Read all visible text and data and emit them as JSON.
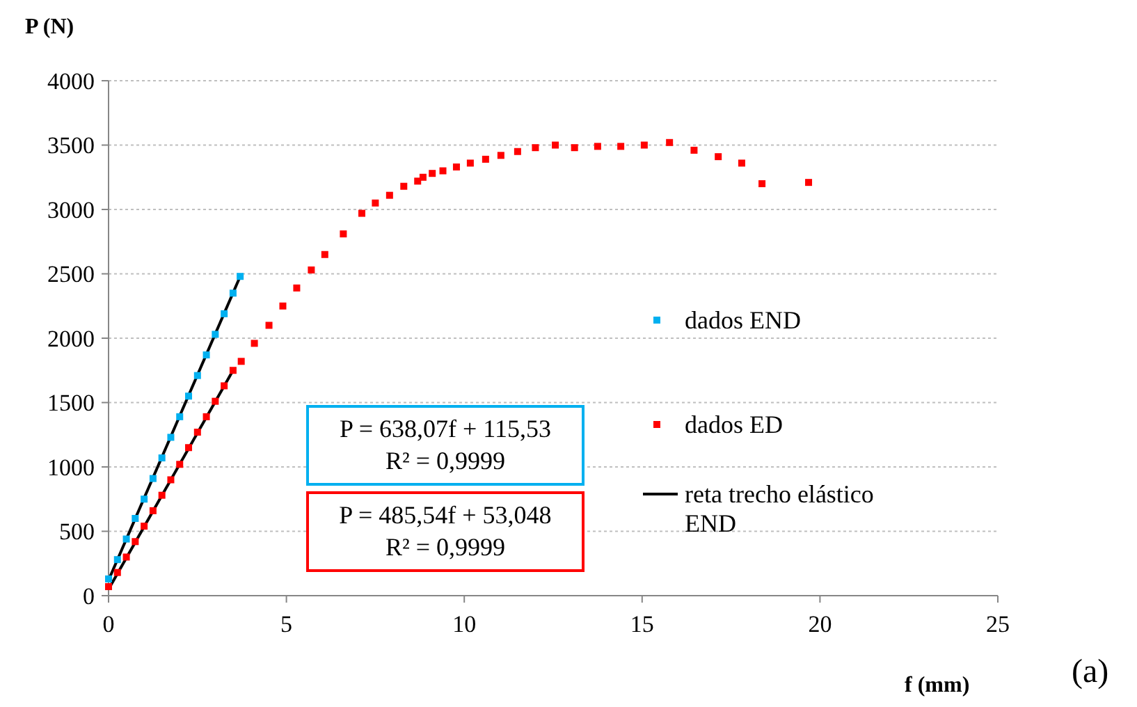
{
  "chart_data": {
    "type": "scatter",
    "xlabel": "f (mm)",
    "ylabel": "P (N)",
    "xlim": [
      0,
      25
    ],
    "xticks": [
      0,
      5,
      10,
      15,
      20,
      25
    ],
    "ylim": [
      0,
      4000
    ],
    "yticks": [
      0,
      500,
      1000,
      1500,
      2000,
      2500,
      3000,
      3500,
      4000
    ],
    "grid": "y",
    "marker": "square",
    "legend": "right",
    "series": [
      {
        "name": "dados END",
        "color": "#00b0f0",
        "x": [
          0,
          0.25,
          0.5,
          0.75,
          1,
          1.25,
          1.5,
          1.75,
          2,
          2.25,
          2.5,
          2.75,
          3,
          3.25,
          3.5,
          3.7
        ],
        "values": [
          130,
          280,
          440,
          600,
          750,
          910,
          1070,
          1230,
          1390,
          1550,
          1710,
          1870,
          2030,
          2190,
          2350,
          2480
        ]
      },
      {
        "name": "dados ED",
        "color": "#ff0000",
        "x": [
          0,
          0.25,
          0.5,
          0.75,
          1,
          1.25,
          1.5,
          1.75,
          2,
          2.25,
          2.5,
          2.75,
          3,
          3.25,
          3.5,
          3.73,
          4.1,
          4.51,
          4.9,
          5.29,
          5.7,
          6.08,
          6.6,
          7.12,
          7.5,
          7.9,
          8.3,
          8.69,
          8.84,
          9.1,
          9.4,
          9.78,
          10.17,
          10.6,
          11.03,
          11.5,
          12,
          12.56,
          13.1,
          13.75,
          14.4,
          15.06,
          15.77,
          16.46,
          17.14,
          17.8,
          18.37,
          19.68
        ],
        "values": [
          70,
          180,
          300,
          420,
          540,
          660,
          780,
          900,
          1020,
          1150,
          1270,
          1390,
          1510,
          1630,
          1750,
          1820,
          1960,
          2100,
          2250,
          2390,
          2530,
          2650,
          2810,
          2970,
          3050,
          3110,
          3180,
          3220,
          3250,
          3280,
          3300,
          3330,
          3360,
          3390,
          3420,
          3450,
          3480,
          3500,
          3480,
          3490,
          3490,
          3500,
          3520,
          3460,
          3410,
          3360,
          3200,
          3210
        ]
      },
      {
        "name": "reta trecho elástico END",
        "type": "line",
        "marker": "none",
        "color": "#000000",
        "x": [
          0,
          3.7
        ],
        "values": [
          120,
          2480
        ]
      },
      {
        "type": "line",
        "marker": "none",
        "color": "#000000",
        "x": [
          0,
          3.5
        ],
        "values": [
          50,
          1750
        ]
      }
    ],
    "annotations": [
      "P = 638,07f + 115,53\nR² = 0,9999",
      "P = 485,54f + 53,048\nR² = 0,9999",
      "(a)"
    ]
  }
}
